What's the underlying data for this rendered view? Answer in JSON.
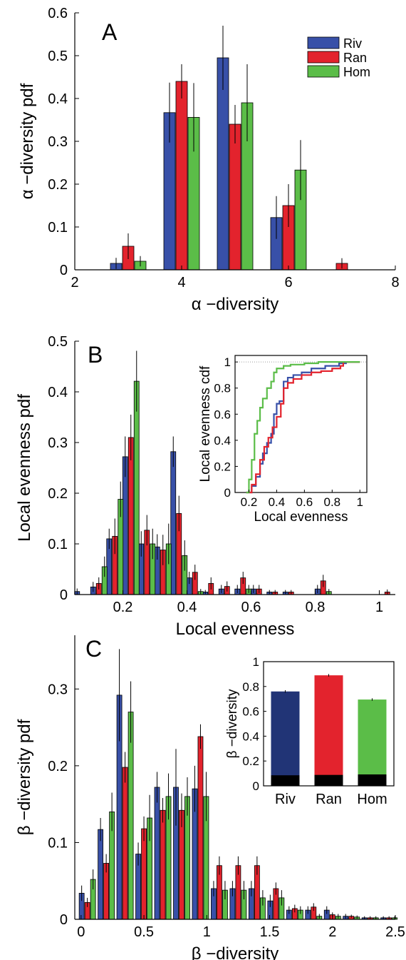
{
  "colors": {
    "Riv": "#3850a8",
    "Ran": "#e3232d",
    "Hom": "#5bbd48",
    "Riv_dark": "#213476",
    "base": "#000000",
    "refline": "#9a9a9a"
  },
  "chart_data": [
    {
      "type": "bar",
      "panel_label": "A",
      "xlabel": "α −diversity",
      "ylabel": "α −diversity pdf",
      "xlim": [
        2,
        8
      ],
      "ylim": [
        0,
        0.6
      ],
      "xticks": [
        "2",
        "4",
        "6",
        "8"
      ],
      "yticks": [
        "0",
        "0.1",
        "0.2",
        "0.3",
        "0.4",
        "0.5",
        "0.6"
      ],
      "legend": {
        "position": "top-right",
        "entries": [
          "Riv",
          "Ran",
          "Hom"
        ]
      },
      "x": [
        3,
        4,
        5,
        6,
        7
      ],
      "series": [
        {
          "name": "Riv",
          "values": [
            0.015,
            0.367,
            0.495,
            0.122,
            0.0
          ],
          "errors": [
            0.013,
            0.07,
            0.075,
            0.05,
            0.0
          ]
        },
        {
          "name": "Ran",
          "values": [
            0.055,
            0.44,
            0.34,
            0.15,
            0.015
          ],
          "errors": [
            0.03,
            0.04,
            0.045,
            0.05,
            0.012
          ]
        },
        {
          "name": "Hom",
          "values": [
            0.02,
            0.356,
            0.39,
            0.233,
            0.0
          ],
          "errors": [
            0.012,
            0.08,
            0.09,
            0.07,
            0.0
          ]
        }
      ]
    },
    {
      "type": "bar",
      "panel_label": "B",
      "xlabel": "Local evenness",
      "ylabel": "Local evenness pdf",
      "xlim": [
        0.05,
        1.05
      ],
      "ylim": [
        0,
        0.5
      ],
      "xticks": [
        "0.2",
        "0.4",
        "0.6",
        "0.8",
        "1"
      ],
      "yticks": [
        "0",
        "0.1",
        "0.2",
        "0.3",
        "0.4",
        "0.5"
      ],
      "x": [
        0.075,
        0.125,
        0.175,
        0.225,
        0.275,
        0.325,
        0.375,
        0.425,
        0.475,
        0.525,
        0.575,
        0.625,
        0.675,
        0.725,
        0.775,
        0.825,
        0.875,
        0.925,
        0.975,
        1.025
      ],
      "series": [
        {
          "name": "Riv",
          "values": [
            0.006,
            0.015,
            0.11,
            0.272,
            0.1,
            0.094,
            0.282,
            0.033,
            0.005,
            0.011,
            0.011,
            0.011,
            0.005,
            0.005,
            0.0,
            0.011,
            0.0,
            0.0,
            0.0,
            0.0
          ],
          "errors": [
            0.006,
            0.01,
            0.02,
            0.04,
            0.025,
            0.025,
            0.03,
            0.012,
            0.004,
            0.008,
            0.008,
            0.008,
            0.004,
            0.004,
            0.0,
            0.008,
            0.0,
            0.0,
            0.0,
            0.0
          ]
        },
        {
          "name": "Ran",
          "values": [
            0.0,
            0.022,
            0.115,
            0.31,
            0.127,
            0.088,
            0.16,
            0.044,
            0.022,
            0.016,
            0.033,
            0.011,
            0.005,
            0.005,
            0.0,
            0.027,
            0.0,
            0.0,
            0.0,
            0.005
          ],
          "errors": [
            0.0,
            0.012,
            0.035,
            0.045,
            0.03,
            0.03,
            0.035,
            0.015,
            0.012,
            0.01,
            0.012,
            0.008,
            0.004,
            0.004,
            0.0,
            0.012,
            0.0,
            0.0,
            0.0,
            0.005
          ]
        },
        {
          "name": "Hom",
          "values": [
            0.0,
            0.055,
            0.188,
            0.421,
            0.1,
            0.1,
            0.077,
            0.006,
            0.0,
            0.0,
            0.011,
            0.0,
            0.0,
            0.0,
            0.0,
            0.006,
            0.0,
            0.0,
            0.0,
            0.0
          ],
          "errors": [
            0.0,
            0.02,
            0.035,
            0.06,
            0.03,
            0.04,
            0.03,
            0.005,
            0.0,
            0.0,
            0.008,
            0.0,
            0.0,
            0.0,
            0.0,
            0.005,
            0.0,
            0.0,
            0.0,
            0.0
          ]
        }
      ],
      "inset": {
        "type": "line",
        "xlabel": "Local evenness",
        "ylabel": "Local evenness cdf",
        "xlim": [
          0.1,
          1.05
        ],
        "ylim": [
          0,
          1.05
        ],
        "xticks": [
          "0.2",
          "0.4",
          "0.6",
          "0.8",
          "1"
        ],
        "yticks": [
          "0",
          "0.2",
          "0.4",
          "0.6",
          "0.8",
          "1"
        ],
        "series": [
          {
            "name": "Riv",
            "x": [
              0.18,
              0.22,
              0.25,
              0.28,
              0.3,
              0.33,
              0.36,
              0.38,
              0.4,
              0.42,
              0.45,
              0.48,
              0.52,
              0.58,
              0.65,
              0.75,
              0.85,
              0.9,
              1.0
            ],
            "y": [
              0.0,
              0.05,
              0.12,
              0.22,
              0.3,
              0.38,
              0.45,
              0.6,
              0.68,
              0.7,
              0.85,
              0.88,
              0.9,
              0.92,
              0.95,
              0.97,
              0.99,
              1.0,
              1.0
            ]
          },
          {
            "name": "Ran",
            "x": [
              0.18,
              0.22,
              0.25,
              0.28,
              0.31,
              0.34,
              0.37,
              0.4,
              0.43,
              0.45,
              0.48,
              0.52,
              0.58,
              0.65,
              0.72,
              0.8,
              0.86,
              0.88,
              1.0
            ],
            "y": [
              0.0,
              0.06,
              0.14,
              0.25,
              0.35,
              0.42,
              0.5,
              0.58,
              0.68,
              0.8,
              0.84,
              0.87,
              0.9,
              0.92,
              0.93,
              0.95,
              0.97,
              1.0,
              1.0
            ]
          },
          {
            "name": "Hom",
            "x": [
              0.18,
              0.2,
              0.22,
              0.24,
              0.26,
              0.28,
              0.3,
              0.33,
              0.36,
              0.38,
              0.4,
              0.45,
              0.5,
              0.6,
              0.7,
              1.0
            ],
            "y": [
              0.0,
              0.1,
              0.25,
              0.45,
              0.55,
              0.65,
              0.72,
              0.8,
              0.85,
              0.92,
              0.95,
              0.97,
              0.98,
              0.99,
              1.0,
              1.0
            ]
          }
        ]
      }
    },
    {
      "type": "bar",
      "panel_label": "C",
      "xlabel": "β −diversity",
      "ylabel": "β −diversity pdf",
      "xlim": [
        -0.05,
        2.5
      ],
      "ylim": [
        0,
        0.37
      ],
      "xticks": [
        "0",
        "0.5",
        "1",
        "1.5",
        "2",
        "2.5"
      ],
      "yticks": [
        "0",
        "0.1",
        "0.2",
        "0.3"
      ],
      "x": [
        0.05,
        0.2,
        0.35,
        0.5,
        0.65,
        0.8,
        0.95,
        1.1,
        1.25,
        1.4,
        1.55,
        1.7,
        1.85,
        2.0,
        2.15,
        2.3,
        2.45
      ],
      "series": [
        {
          "name": "Riv",
          "values": [
            0.034,
            0.117,
            0.292,
            0.085,
            0.172,
            0.172,
            0.17,
            0.04,
            0.04,
            0.04,
            0.024,
            0.012,
            0.012,
            0.012,
            0.004,
            0.002,
            0.002
          ],
          "errors": [
            0.01,
            0.015,
            0.06,
            0.015,
            0.02,
            0.05,
            0.03,
            0.01,
            0.01,
            0.01,
            0.008,
            0.005,
            0.005,
            0.005,
            0.003,
            0.002,
            0.002
          ]
        },
        {
          "name": "Ran",
          "values": [
            0.022,
            0.073,
            0.198,
            0.118,
            0.142,
            0.142,
            0.238,
            0.07,
            0.07,
            0.07,
            0.04,
            0.014,
            0.016,
            0.006,
            0.004,
            0.002,
            0.002
          ],
          "errors": [
            0.006,
            0.012,
            0.02,
            0.016,
            0.016,
            0.022,
            0.016,
            0.012,
            0.012,
            0.012,
            0.008,
            0.005,
            0.005,
            0.003,
            0.002,
            0.002,
            0.002
          ]
        },
        {
          "name": "Hom",
          "values": [
            0.052,
            0.14,
            0.27,
            0.132,
            0.16,
            0.16,
            0.16,
            0.038,
            0.038,
            0.028,
            0.028,
            0.012,
            0.004,
            0.004,
            0.003,
            0.002,
            0.002
          ],
          "errors": [
            0.013,
            0.025,
            0.04,
            0.03,
            0.03,
            0.025,
            0.032,
            0.012,
            0.012,
            0.01,
            0.01,
            0.005,
            0.003,
            0.003,
            0.002,
            0.002,
            0.002
          ]
        }
      ],
      "inset": {
        "type": "bar",
        "ylabel": "β −diversity",
        "ylim": [
          0,
          1
        ],
        "yticks": [
          "0",
          "0.2",
          "0.4",
          "0.6",
          "0.8",
          "1"
        ],
        "categories": [
          "Riv",
          "Ran",
          "Hom"
        ],
        "values": [
          0.76,
          0.89,
          0.695
        ],
        "errors": [
          0.01,
          0.01,
          0.01
        ],
        "base_values": [
          0.085,
          0.088,
          0.092
        ]
      }
    }
  ]
}
